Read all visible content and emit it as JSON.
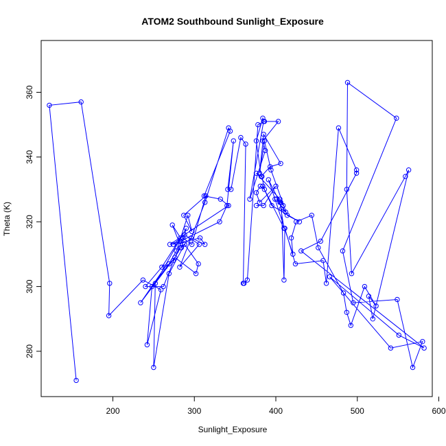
{
  "chart_data": {
    "type": "line",
    "title": "ATOM2 Southbound Sunlight_Exposure",
    "xlabel": "Sunlight_Exposure",
    "ylabel": "Theta (K)",
    "xlim": [
      112,
      592
    ],
    "ylim": [
      266,
      376
    ],
    "xticks": [
      200,
      300,
      400,
      500,
      600
    ],
    "yticks": [
      280,
      300,
      320,
      340,
      360
    ],
    "grid": false,
    "series": [
      {
        "color": "#0000ff",
        "marker": "open-circle",
        "x": [
          155,
          122,
          161,
          196,
          195,
          237,
          259,
          242,
          248,
          269,
          278,
          292,
          297,
          287,
          314,
          297,
          286,
          262,
          240,
          260,
          283,
          273,
          284,
          290,
          252,
          250,
          269,
          288,
          305,
          302,
          276,
          234,
          264,
          274,
          283,
          296,
          313,
          307,
          274,
          288,
          306,
          282,
          313,
          342,
          344,
          312,
          332,
          342,
          270,
          283,
          331,
          340,
          348,
          341,
          345,
          357,
          363,
          360,
          361,
          365,
          378,
          386,
          403,
          384,
          387,
          368,
          385,
          384,
          376,
          382,
          393,
          406,
          385,
          380,
          386,
          394,
          414,
          429,
          395,
          384,
          410,
          405,
          391,
          399,
          421,
          419,
          425,
          444,
          452,
          483,
          487,
          492,
          509,
          523,
          514,
          519,
          563,
          559,
          493,
          487,
          488,
          548,
          482,
          495,
          549,
          568,
          580,
          541,
          466,
          551,
          582,
          431,
          455,
          499,
          499,
          477,
          462,
          458,
          424,
          411,
          410,
          407,
          412,
          401,
          406,
          409,
          405,
          376,
          383,
          386,
          381,
          376,
          380,
          400,
          385,
          376
        ],
        "y": [
          271,
          356,
          357,
          301,
          291,
          302,
          299,
          282,
          300,
          307,
          311,
          322,
          317,
          322,
          328,
          313,
          315,
          300,
          300,
          306,
          315,
          319,
          312,
          318,
          301,
          275,
          304,
          313,
          307,
          304,
          309,
          295,
          306,
          308,
          312,
          315,
          313,
          315,
          313,
          316,
          313,
          306,
          326,
          349,
          348,
          328,
          327,
          325,
          313,
          314,
          320,
          325,
          345,
          330,
          330,
          346,
          344,
          301,
          301,
          302,
          350,
          351,
          351,
          345,
          342,
          327,
          351,
          352,
          345,
          334,
          337,
          338,
          347,
          335,
          345,
          336,
          322,
          320,
          325,
          331,
          318,
          326,
          333,
          327,
          310,
          315,
          320,
          322,
          312,
          298,
          292,
          288,
          300,
          294,
          297,
          290,
          336,
          334,
          304,
          330,
          363,
          352,
          311,
          295,
          296,
          275,
          283,
          281,
          303,
          285,
          281,
          311,
          314,
          335,
          336,
          349,
          301,
          308,
          307,
          318,
          302,
          324,
          323,
          327,
          326,
          325,
          327,
          335,
          334,
          330,
          331,
          329,
          326,
          331,
          325,
          325
        ]
      }
    ]
  }
}
